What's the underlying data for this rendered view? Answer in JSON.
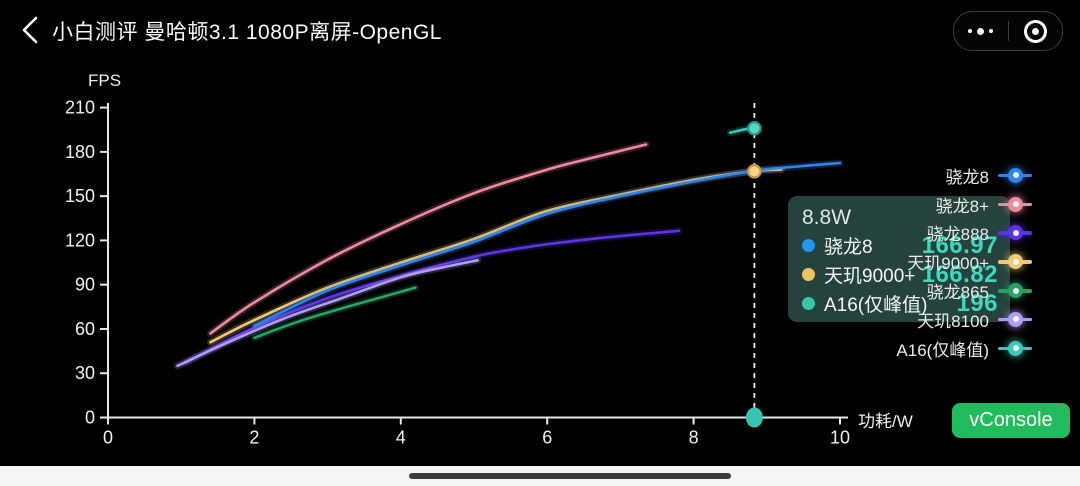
{
  "header": {
    "title": "小白测评 曼哈顿3.1 1080P离屏-OpenGL",
    "icons": {
      "back": "chevron-left",
      "menu": "three-dots",
      "minimize": "target-circle"
    }
  },
  "chart_data": {
    "type": "line",
    "title": "",
    "xlabel": "功耗/W",
    "ylabel": "FPS",
    "xlim": [
      0,
      10
    ],
    "ylim": [
      0,
      210
    ],
    "x_ticks": [
      0,
      2,
      4,
      6,
      8,
      10
    ],
    "y_ticks": [
      0,
      30,
      60,
      90,
      120,
      150,
      180,
      210
    ],
    "grid": false,
    "legend_position": "right",
    "series": [
      {
        "name": "骁龙8",
        "color": "#2f84ee",
        "points": [
          [
            2.0,
            62
          ],
          [
            3.0,
            86
          ],
          [
            4.0,
            103
          ],
          [
            5.0,
            119
          ],
          [
            6.0,
            138
          ],
          [
            7.0,
            150
          ],
          [
            8.0,
            160
          ],
          [
            8.8,
            166.97
          ],
          [
            9.4,
            170
          ],
          [
            10.0,
            172.5
          ]
        ]
      },
      {
        "name": "骁龙8+",
        "color": "#ee8ba1",
        "points": [
          [
            1.4,
            57
          ],
          [
            2.0,
            78
          ],
          [
            3.0,
            107
          ],
          [
            4.0,
            131
          ],
          [
            5.0,
            152
          ],
          [
            6.0,
            168
          ],
          [
            6.7,
            177
          ],
          [
            7.35,
            185
          ]
        ]
      },
      {
        "name": "骁龙888",
        "color": "#5d33e6",
        "points": [
          [
            1.05,
            37
          ],
          [
            2.0,
            61
          ],
          [
            3.0,
            81
          ],
          [
            4.0,
            96
          ],
          [
            5.0,
            109
          ],
          [
            5.8,
            116
          ],
          [
            6.8,
            122
          ],
          [
            7.8,
            126.5
          ]
        ]
      },
      {
        "name": "天玑9000+",
        "color": "#f0c878",
        "points": [
          [
            1.4,
            51
          ],
          [
            2.0,
            66
          ],
          [
            3.0,
            88
          ],
          [
            4.0,
            105
          ],
          [
            5.0,
            121
          ],
          [
            6.0,
            140
          ],
          [
            7.0,
            151
          ],
          [
            8.0,
            161
          ],
          [
            8.8,
            166.82
          ],
          [
            9.2,
            168
          ]
        ]
      },
      {
        "name": "骁龙865",
        "color": "#27a268",
        "points": [
          [
            2.0,
            54
          ],
          [
            2.6,
            65
          ],
          [
            3.2,
            74
          ],
          [
            3.7,
            81
          ],
          [
            4.2,
            88
          ]
        ]
      },
      {
        "name": "天玑8100",
        "color": "#b09df5",
        "points": [
          [
            0.95,
            35
          ],
          [
            1.6,
            50
          ],
          [
            2.4,
            67
          ],
          [
            3.2,
            81
          ],
          [
            4.0,
            95
          ],
          [
            4.6,
            102
          ],
          [
            5.05,
            106.5
          ]
        ]
      },
      {
        "name": "A16(仅峰值)",
        "color": "#3ac9b4",
        "points": [
          [
            8.5,
            193
          ],
          [
            8.7,
            195.3
          ],
          [
            8.83,
            196
          ]
        ]
      }
    ],
    "crosshair": {
      "x": 8.83,
      "label": "8.8W"
    },
    "point_markers": [
      {
        "series": "天玑9000+",
        "x": 8.83,
        "y": 166.82,
        "fill": "#f6d388",
        "ring": "#c9973f"
      },
      {
        "series": "A16(仅峰值)",
        "x": 8.83,
        "y": 196,
        "fill": "#57d8c4",
        "ring": "#1c9c89"
      },
      {
        "series": "axis-point",
        "x": 8.83,
        "y": 0,
        "fill": "#38c2b0",
        "ring": "none"
      }
    ]
  },
  "tooltip": {
    "header": "8.8W",
    "rows": [
      {
        "name": "骁龙8",
        "value": "166.97",
        "color": "#2196f3"
      },
      {
        "name": "天玑9000+",
        "value": "166.82",
        "color": "#f0c266"
      },
      {
        "name": "A16(仅峰值)",
        "value": "196",
        "color": "#35c9a8"
      }
    ]
  },
  "console_button": {
    "label": "vConsole",
    "color": "#21bd5c"
  }
}
